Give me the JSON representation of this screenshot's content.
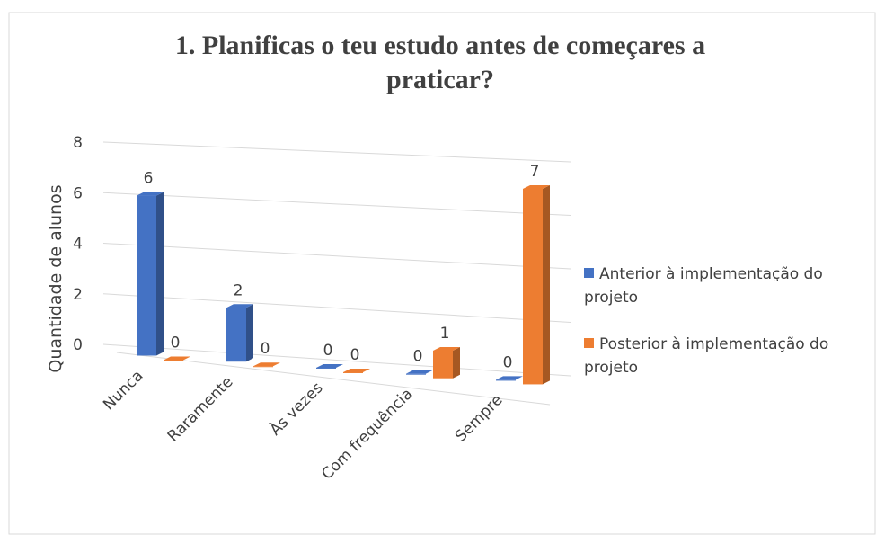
{
  "chart_data": {
    "type": "bar3d",
    "title": "1. Planificas o teu estudo antes de começares a praticar?",
    "y_label": "Quantidade de alunos",
    "categories": [
      "Nunca",
      "Raramente",
      "Às vezes",
      "Com frequência",
      "Sempre"
    ],
    "series": [
      {
        "name": "Anterior à implementação do projeto",
        "color": "#4472c4",
        "values": [
          6,
          2,
          0,
          0,
          0
        ]
      },
      {
        "name": "Posterior à implementação do projeto",
        "color": "#ed7d31",
        "values": [
          0,
          0,
          0,
          1,
          7
        ]
      }
    ],
    "ylim": [
      0,
      8
    ],
    "yticks": [
      0,
      2,
      4,
      6,
      8
    ],
    "grid": true,
    "legend": "right"
  }
}
